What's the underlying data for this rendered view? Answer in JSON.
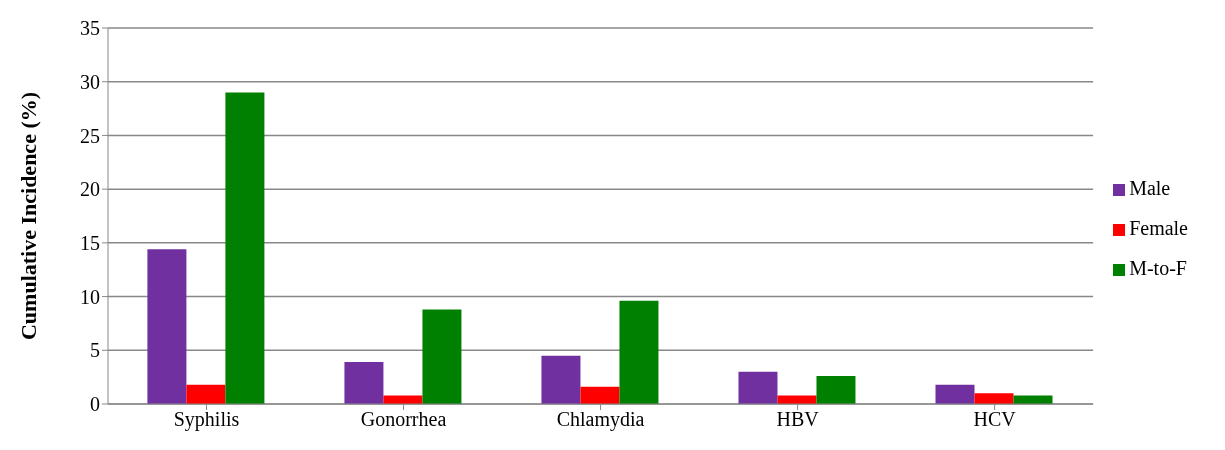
{
  "chart_data": {
    "type": "bar",
    "ylabel": "Cumulative Incidence (%)",
    "categories": [
      "Syphilis",
      "Gonorrhea",
      "Chlamydia",
      "HBV",
      "HCV"
    ],
    "series": [
      {
        "name": "Male",
        "color": "#7030a0",
        "values": [
          14.4,
          3.9,
          4.5,
          3.0,
          1.8
        ]
      },
      {
        "name": "Female",
        "color": "#ff0000",
        "values": [
          1.8,
          0.8,
          1.6,
          0.8,
          1.0
        ]
      },
      {
        "name": "M-to-F",
        "color": "#008000",
        "values": [
          29.0,
          8.8,
          9.6,
          2.6,
          0.8
        ]
      }
    ],
    "ylim": [
      0,
      35
    ],
    "yticks": [
      0,
      5,
      10,
      15,
      20,
      25,
      30,
      35
    ],
    "grid": "y",
    "legend": "right"
  }
}
